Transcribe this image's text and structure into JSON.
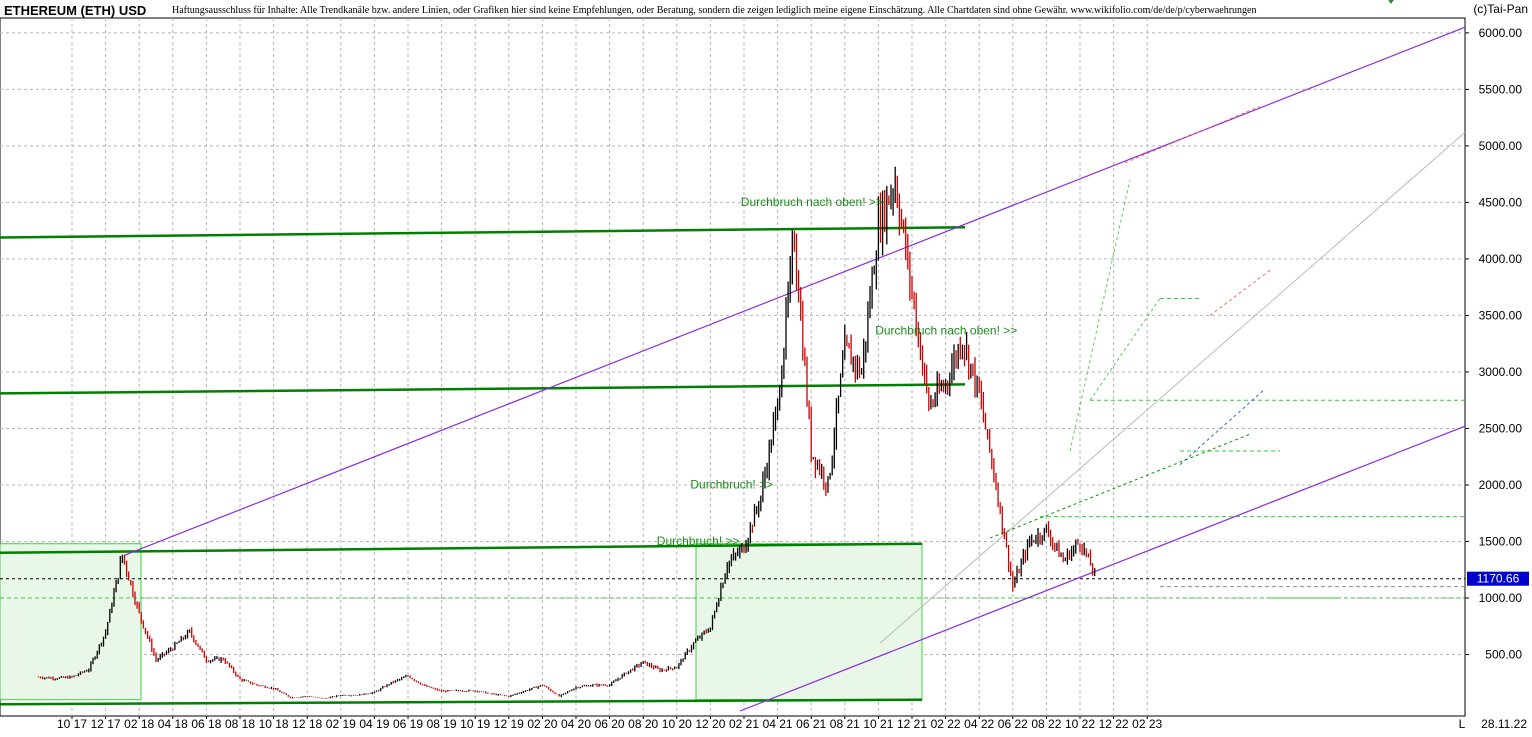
{
  "header": {
    "title": "ETHEREUM (ETH) USD",
    "disclaimer": "Haftungsausschluss für Inhalte: Alle Trendkanäle bzw. andere Linien, oder Grafiken hier sind keine Empfehlungen, oder Beratung, sondern die zeigen lediglich meine eigene Einschätzung. Alle Chartdaten sind ohne Gewähr. www.wikifolio.com/de/de/p/cyberwaehrungen",
    "source": "(c)Tai-Pan"
  },
  "colors": {
    "candle_up": "#000000",
    "candle_down": "#cc0000",
    "channel_line": "#8a2be2",
    "horizontal_level": "#008000",
    "dashed_level": "#33cc33",
    "last_price_badge": "#0000cc",
    "box_fill": "#e8f7e8",
    "grid": "#b5b5b5"
  },
  "chart_data": {
    "type": "candlestick",
    "title": "ETHEREUM (ETH) USD",
    "y_axis": {
      "position": "right",
      "ticks": [
        "6000.00",
        "5500.00",
        "5000.00",
        "4500.00",
        "4000.00",
        "3500.00",
        "3000.00",
        "2500.00",
        "2000.00",
        "1500.00",
        "1000.00",
        "500.00"
      ],
      "range": [
        0,
        6200
      ]
    },
    "x_axis": {
      "ticks": [
        "10 17",
        "12 17",
        "02 18",
        "04 18",
        "06 18",
        "08 18",
        "10 18",
        "12 18",
        "02 19",
        "04 19",
        "06 19",
        "08 19",
        "10 19",
        "12 19",
        "02 20",
        "04 20",
        "06 20",
        "08 20",
        "10 20",
        "12 20",
        "02 21",
        "04 21",
        "06 21",
        "08 21",
        "10 21",
        "12 21",
        "02 22",
        "04 22",
        "06 22",
        "08 22",
        "10 22",
        "12 22",
        "02 23"
      ],
      "end_label": "L",
      "date_label": "28.11.22"
    },
    "grid": true,
    "last_price": "1170.66",
    "price_path": [
      [
        "2017-08",
        300
      ],
      [
        "2017-09",
        290
      ],
      [
        "2017-10",
        300
      ],
      [
        "2017-11",
        370
      ],
      [
        "2017-12",
        700
      ],
      [
        "2018-01",
        1380
      ],
      [
        "2018-02",
        860
      ],
      [
        "2018-03",
        450
      ],
      [
        "2018-04",
        560
      ],
      [
        "2018-05",
        700
      ],
      [
        "2018-06",
        450
      ],
      [
        "2018-07",
        460
      ],
      [
        "2018-08",
        280
      ],
      [
        "2018-09",
        230
      ],
      [
        "2018-10",
        200
      ],
      [
        "2018-11",
        120
      ],
      [
        "2018-12",
        130
      ],
      [
        "2019-01",
        110
      ],
      [
        "2019-02",
        140
      ],
      [
        "2019-03",
        140
      ],
      [
        "2019-04",
        165
      ],
      [
        "2019-05",
        250
      ],
      [
        "2019-06",
        310
      ],
      [
        "2019-07",
        220
      ],
      [
        "2019-08",
        175
      ],
      [
        "2019-09",
        180
      ],
      [
        "2019-10",
        180
      ],
      [
        "2019-11",
        150
      ],
      [
        "2019-12",
        130
      ],
      [
        "2020-01",
        180
      ],
      [
        "2020-02",
        230
      ],
      [
        "2020-03",
        130
      ],
      [
        "2020-04",
        210
      ],
      [
        "2020-05",
        230
      ],
      [
        "2020-06",
        230
      ],
      [
        "2020-07",
        340
      ],
      [
        "2020-08",
        430
      ],
      [
        "2020-09",
        360
      ],
      [
        "2020-10",
        390
      ],
      [
        "2020-11",
        600
      ],
      [
        "2020-12",
        740
      ],
      [
        "2021-01",
        1300
      ],
      [
        "2021-02",
        1450
      ],
      [
        "2021-03",
        1900
      ],
      [
        "2021-04",
        2700
      ],
      [
        "2021-05",
        4200
      ],
      [
        "2021-06",
        2300
      ],
      [
        "2021-07",
        2000
      ],
      [
        "2021-08",
        3200
      ],
      [
        "2021-09",
        3000
      ],
      [
        "2021-10",
        4300
      ],
      [
        "2021-11",
        4700
      ],
      [
        "2021-12",
        3700
      ],
      [
        "2022-01",
        2700
      ],
      [
        "2022-02",
        2900
      ],
      [
        "2022-03",
        3300
      ],
      [
        "2022-04",
        2800
      ],
      [
        "2022-05",
        2000
      ],
      [
        "2022-06",
        1100
      ],
      [
        "2022-07",
        1500
      ],
      [
        "2022-08",
        1600
      ],
      [
        "2022-09",
        1330
      ],
      [
        "2022-10",
        1500
      ],
      [
        "2022-11",
        1170
      ]
    ],
    "horizontal_levels": [
      {
        "value": 4280,
        "style": "solid"
      },
      {
        "value": 2890,
        "style": "solid"
      },
      {
        "value": 1480,
        "style": "solid"
      },
      {
        "value": 100,
        "style": "solid"
      },
      {
        "value": 2750,
        "style": "dashed"
      },
      {
        "value": 1720,
        "style": "dashed"
      },
      {
        "value": 1000,
        "style": "dashed"
      }
    ],
    "annotations": [
      {
        "text": "Durchbruch nach oben! >>",
        "date": "2021-03",
        "value": 4470
      },
      {
        "text": "Durchbruch nach oben! >>",
        "date": "2021-11",
        "value": 3330
      },
      {
        "text": "Durchbruch! >>",
        "date": "2020-12",
        "value": 1970
      },
      {
        "text": "Durchbruch! >>",
        "date": "2020-10",
        "value": 1470
      }
    ]
  }
}
